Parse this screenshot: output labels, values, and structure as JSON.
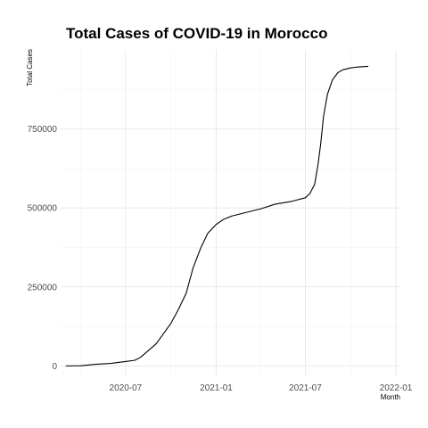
{
  "chart_data": {
    "type": "line",
    "title": "Total Cases of COVID-19 in Morocco",
    "xlabel": "Month",
    "ylabel": "Total Cases",
    "x_axis_type": "date",
    "xlim": [
      "2020-02-20",
      "2022-01-10"
    ],
    "ylim": [
      -30000,
      1000000
    ],
    "x_ticks": [
      {
        "date": "2020-07-01",
        "label": "2020-07"
      },
      {
        "date": "2021-01-01",
        "label": "2021-01"
      },
      {
        "date": "2021-07-01",
        "label": "2021-07"
      },
      {
        "date": "2022-01-01",
        "label": "2022-01"
      }
    ],
    "x_minor_ticks": [
      "2020-04-01",
      "2020-10-01",
      "2021-04-01",
      "2021-10-01"
    ],
    "y_ticks": [
      0,
      250000,
      500000,
      750000
    ],
    "y_tick_labels": [
      "0",
      "250000",
      "500000",
      "750000"
    ],
    "y_minor_ticks": [
      125000,
      375000,
      625000,
      875000
    ],
    "grid": true,
    "series": [
      {
        "color": "#000000",
        "points": [
          {
            "x": "2020-03-02",
            "y": 0
          },
          {
            "x": "2020-04-01",
            "y": 600
          },
          {
            "x": "2020-05-01",
            "y": 5000
          },
          {
            "x": "2020-06-01",
            "y": 8000
          },
          {
            "x": "2020-07-01",
            "y": 14000
          },
          {
            "x": "2020-07-20",
            "y": 18000
          },
          {
            "x": "2020-08-01",
            "y": 28000
          },
          {
            "x": "2020-08-15",
            "y": 47000
          },
          {
            "x": "2020-09-01",
            "y": 70000
          },
          {
            "x": "2020-09-15",
            "y": 100000
          },
          {
            "x": "2020-10-01",
            "y": 135000
          },
          {
            "x": "2020-10-15",
            "y": 175000
          },
          {
            "x": "2020-11-01",
            "y": 230000
          },
          {
            "x": "2020-11-15",
            "y": 310000
          },
          {
            "x": "2020-12-01",
            "y": 375000
          },
          {
            "x": "2020-12-15",
            "y": 420000
          },
          {
            "x": "2021-01-01",
            "y": 448000
          },
          {
            "x": "2021-01-15",
            "y": 463000
          },
          {
            "x": "2021-02-01",
            "y": 474000
          },
          {
            "x": "2021-03-01",
            "y": 485000
          },
          {
            "x": "2021-04-01",
            "y": 497000
          },
          {
            "x": "2021-05-01",
            "y": 512000
          },
          {
            "x": "2021-06-01",
            "y": 520000
          },
          {
            "x": "2021-07-01",
            "y": 532000
          },
          {
            "x": "2021-07-10",
            "y": 545000
          },
          {
            "x": "2021-07-20",
            "y": 575000
          },
          {
            "x": "2021-07-27",
            "y": 640000
          },
          {
            "x": "2021-08-01",
            "y": 700000
          },
          {
            "x": "2021-08-07",
            "y": 790000
          },
          {
            "x": "2021-08-15",
            "y": 860000
          },
          {
            "x": "2021-08-25",
            "y": 905000
          },
          {
            "x": "2021-09-05",
            "y": 928000
          },
          {
            "x": "2021-09-15",
            "y": 937000
          },
          {
            "x": "2021-10-01",
            "y": 943000
          },
          {
            "x": "2021-10-15",
            "y": 946000
          },
          {
            "x": "2021-11-05",
            "y": 948000
          }
        ]
      }
    ]
  }
}
